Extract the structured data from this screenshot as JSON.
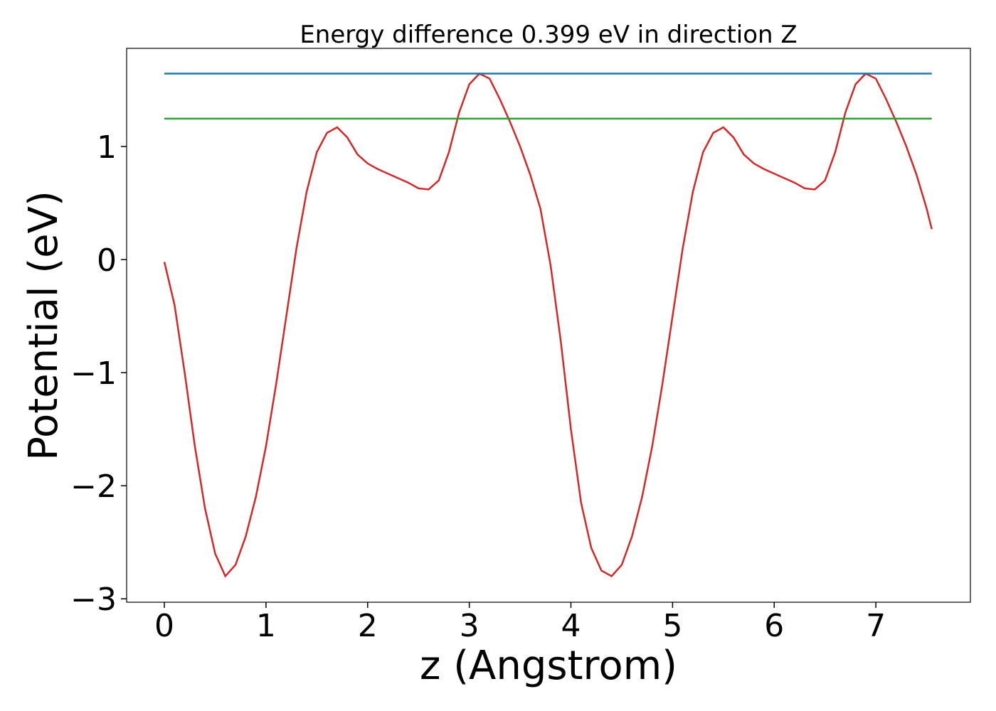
{
  "chart_data": {
    "type": "line",
    "title": "Energy difference 0.399 eV in direction Z",
    "xlabel": "z (Angstrom)",
    "ylabel": "Potential (eV)",
    "xlim": [
      -0.371,
      7.93
    ],
    "ylim": [
      -3.03,
      1.868
    ],
    "xticks": [
      0,
      1,
      2,
      3,
      4,
      5,
      6,
      7
    ],
    "yticks": [
      {
        "value": -3,
        "label": "−3"
      },
      {
        "value": -2,
        "label": "−2"
      },
      {
        "value": -1,
        "label": "−1"
      },
      0,
      1
    ],
    "series": [
      {
        "color": "#d62728",
        "x": [
          0,
          0.1,
          0.2,
          0.3,
          0.4,
          0.5,
          0.6,
          0.7,
          0.8,
          0.9,
          1,
          1.1,
          1.2,
          1.3,
          1.4,
          1.5,
          1.6,
          1.7,
          1.8,
          1.9,
          2,
          2.1,
          2.2,
          2.3,
          2.4,
          2.5,
          2.6,
          2.7,
          2.8,
          2.9,
          3,
          3.1,
          3.2,
          3.3,
          3.4,
          3.5,
          3.6,
          3.7,
          3.8,
          3.9,
          4,
          4.1,
          4.2,
          4.3,
          4.4,
          4.5,
          4.6,
          4.7,
          4.8,
          4.9,
          5,
          5.1,
          5.2,
          5.3,
          5.4,
          5.5,
          5.6,
          5.7,
          5.8,
          5.9,
          6,
          6.1,
          6.2,
          6.3,
          6.4,
          6.5,
          6.6,
          6.7,
          6.8,
          6.9,
          7,
          7.1,
          7.2,
          7.3,
          7.4,
          7.5,
          7.55
        ],
        "values": [
          -0.02,
          -0.4,
          -1.0,
          -1.65,
          -2.2,
          -2.6,
          -2.8,
          -2.7,
          -2.45,
          -2.1,
          -1.65,
          -1.1,
          -0.5,
          0.1,
          0.6,
          0.95,
          1.12,
          1.17,
          1.08,
          0.93,
          0.85,
          0.8,
          0.76,
          0.72,
          0.68,
          0.63,
          0.62,
          0.7,
          0.95,
          1.3,
          1.55,
          1.645,
          1.6,
          1.42,
          1.22,
          1.0,
          0.75,
          0.45,
          -0.05,
          -0.72,
          -1.5,
          -2.15,
          -2.55,
          -2.75,
          -2.8,
          -2.7,
          -2.45,
          -2.1,
          -1.65,
          -1.1,
          -0.5,
          0.1,
          0.6,
          0.95,
          1.12,
          1.17,
          1.08,
          0.93,
          0.85,
          0.8,
          0.76,
          0.72,
          0.68,
          0.63,
          0.62,
          0.7,
          0.95,
          1.3,
          1.55,
          1.645,
          1.6,
          1.42,
          1.22,
          1.0,
          0.75,
          0.45,
          0.27
        ]
      },
      {
        "color": "#1f77b4",
        "x": [
          0,
          7.55
        ],
        "values": [
          1.645,
          1.645
        ]
      },
      {
        "color": "#2ca02c",
        "x": [
          0,
          7.55
        ],
        "values": [
          1.246,
          1.246
        ]
      }
    ]
  }
}
